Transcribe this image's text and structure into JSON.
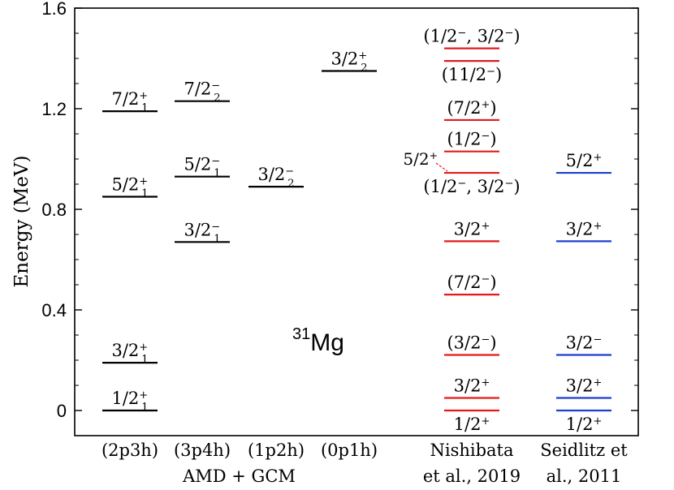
{
  "chart_data": {
    "type": "level-scheme",
    "title": "",
    "ylabel": "Energy (MeV)",
    "ylim": [
      -0.1,
      1.6
    ],
    "yticks": [
      0,
      0.4,
      0.8,
      1.2,
      1.6
    ],
    "ytick_labels": [
      "0",
      "0.4",
      "0.8",
      "1.2",
      "1.6"
    ],
    "nucleus": {
      "mass": "31",
      "symbol": "Mg"
    },
    "group_labels": [
      {
        "text": "AMD + GCM",
        "column": 1.5
      }
    ],
    "columns": [
      {
        "label": [
          "(2p3h)"
        ],
        "color": "#000000",
        "levels": [
          {
            "energy": 0.0,
            "label": {
              "num": "1/2",
              "sub": "1",
              "sup": "+"
            }
          },
          {
            "energy": 0.19,
            "label": {
              "num": "3/2",
              "sub": "1",
              "sup": "+"
            }
          },
          {
            "energy": 0.85,
            "label": {
              "num": "5/2",
              "sub": "1",
              "sup": "+"
            }
          },
          {
            "energy": 1.19,
            "label": {
              "num": "7/2",
              "sub": "1",
              "sup": "+"
            }
          }
        ]
      },
      {
        "label": [
          "(3p4h)"
        ],
        "color": "#000000",
        "levels": [
          {
            "energy": 0.67,
            "label": {
              "num": "3/2",
              "sub": "1",
              "sup": "−"
            }
          },
          {
            "energy": 0.93,
            "label": {
              "num": "5/2",
              "sub": "1",
              "sup": "−"
            }
          },
          {
            "energy": 1.23,
            "label": {
              "num": "7/2",
              "sub": "2",
              "sup": "−"
            }
          }
        ]
      },
      {
        "label": [
          "(1p2h)"
        ],
        "color": "#000000",
        "levels": [
          {
            "energy": 0.89,
            "label": {
              "num": "3/2",
              "sub": "2",
              "sup": "−"
            }
          }
        ]
      },
      {
        "label": [
          "(0p1h)"
        ],
        "color": "#000000",
        "levels": [
          {
            "energy": 1.35,
            "label": {
              "num": "3/2",
              "sub": "2",
              "sup": "+"
            }
          }
        ]
      },
      {
        "label": [
          "Nishibata",
          "et al., 2019"
        ],
        "color": "#e31a1c",
        "levels": [
          {
            "energy": 0.0,
            "label": {
              "num": "1/2",
              "sup": "+"
            },
            "label_pos": "below"
          },
          {
            "energy": 0.05,
            "label": {
              "num": "3/2",
              "sup": "+"
            }
          },
          {
            "energy": 0.221,
            "label": {
              "num": "(3/2",
              "sup": "−",
              "close": ")"
            }
          },
          {
            "energy": 0.461,
            "label": {
              "num": "(7/2",
              "sup": "−",
              "close": ")"
            }
          },
          {
            "energy": 0.673,
            "label": {
              "num": "3/2",
              "sup": "+"
            }
          },
          {
            "energy": 0.945,
            "label": {
              "num": "(1/2",
              "sup": "−",
              "mid": ", 3/2",
              "sup2": "−",
              "close": ")"
            },
            "label_pos": "below"
          },
          {
            "energy": 0.945,
            "label": {
              "num": "5/2",
              "sup": "+"
            },
            "label_pos": "left"
          },
          {
            "energy": 1.03,
            "label": {
              "num": "(1/2",
              "sup": "−",
              "close": ")"
            }
          },
          {
            "energy": 1.155,
            "label": {
              "num": "(7/2",
              "sup": "+",
              "close": ")"
            }
          },
          {
            "energy": 1.39,
            "label": {
              "num": "(11/2",
              "sup": "−",
              "close": ")"
            },
            "label_pos": "below"
          },
          {
            "energy": 1.44,
            "label": {
              "num": "(1/2",
              "sup": "−",
              "mid": ", 3/2",
              "sup2": "−",
              "close": ")"
            }
          }
        ]
      },
      {
        "label": [
          "Seidlitz et",
          "al., 2011"
        ],
        "color": "#1f3fcf",
        "levels": [
          {
            "energy": 0.0,
            "label": {
              "num": "1/2",
              "sup": "+"
            },
            "label_pos": "below"
          },
          {
            "energy": 0.05,
            "label": {
              "num": "3/2",
              "sup": "+"
            }
          },
          {
            "energy": 0.221,
            "label": {
              "num": "3/2",
              "sup": "−"
            }
          },
          {
            "energy": 0.673,
            "label": {
              "num": "3/2",
              "sup": "+"
            }
          },
          {
            "energy": 0.945,
            "label": {
              "num": "5/2",
              "sup": "+"
            }
          }
        ]
      }
    ]
  }
}
